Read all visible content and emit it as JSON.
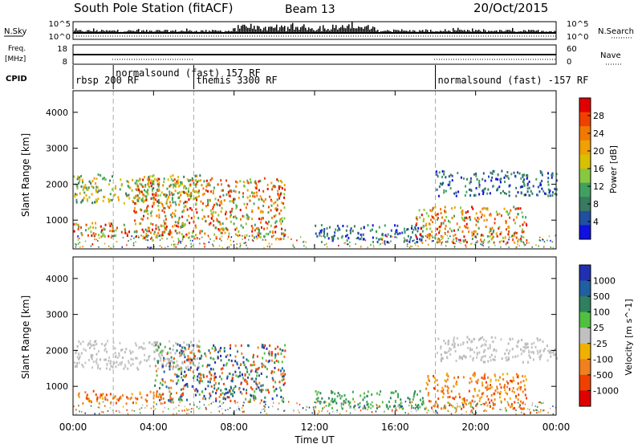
{
  "header": {
    "station": "South Pole Station (fitACF)",
    "beam": "Beam 13",
    "date": "20/Oct/2015"
  },
  "panel_labels": {
    "nsky": "N.Sky",
    "nsearch": "N.Search",
    "freq_line1": "Freq.",
    "freq_line2": "[MHz]",
    "nave": "Nave",
    "cpid": "CPID"
  },
  "small_axis_ticks": {
    "nsky_left": [
      "10^5",
      "10^0"
    ],
    "nsky_right": [
      "10^5",
      "10^0"
    ],
    "freq_left": [
      "18",
      "8"
    ],
    "nave_right": [
      "60",
      "0"
    ]
  },
  "cpid_segments": [
    {
      "label": "rbsp 200 RF",
      "start": 0.0,
      "end": 2.0
    },
    {
      "label": "normalsound (fast) 157 RF",
      "start": 2.0,
      "end": 6.0
    },
    {
      "label": "themis 3300 RF",
      "start": 6.0,
      "end": 18.0
    },
    {
      "label": "normalsound (fast) -157 RF",
      "start": 18.0,
      "end": 24.0
    }
  ],
  "power_colorbar": {
    "label": "Power [dB]",
    "ticks": [
      "28",
      "24",
      "20",
      "16",
      "12",
      "8",
      "4"
    ],
    "colors": [
      "#e00000",
      "#f04000",
      "#f07a00",
      "#f0a000",
      "#d8c000",
      "#88c840",
      "#40a060",
      "#3a7a60",
      "#2050a0",
      "#1010e0"
    ]
  },
  "velocity_colorbar": {
    "label": "Velocity [m s^-1]",
    "ticks": [
      "1000",
      "500",
      "100",
      "25",
      "-25",
      "-100",
      "-500",
      "-1000"
    ],
    "colors": [
      "#2030b0",
      "#2060a0",
      "#308060",
      "#50c040",
      "#c0c0c0",
      "#f0b000",
      "#f08020",
      "#f04000",
      "#e00000"
    ]
  },
  "chart_data": [
    {
      "type": "heatmap",
      "name": "power",
      "ylabel": "Slant Range [km]",
      "xlim": [
        0,
        24
      ],
      "ylim": [
        200,
        4600
      ],
      "yticks": [
        "4000",
        "3000",
        "2000",
        "1000"
      ],
      "bands": [
        {
          "t0": 0.0,
          "t1": 6.3,
          "r0": 1500,
          "r1": 2300,
          "level": "mid"
        },
        {
          "t0": 0.0,
          "t1": 5.5,
          "r0": 550,
          "r1": 950,
          "level": "high"
        },
        {
          "t0": 3.0,
          "t1": 10.5,
          "r0": 500,
          "r1": 2200,
          "level": "high"
        },
        {
          "t0": 12.0,
          "t1": 17.5,
          "r0": 400,
          "r1": 900,
          "level": "low"
        },
        {
          "t0": 17.0,
          "t1": 22.5,
          "r0": 400,
          "r1": 1400,
          "level": "high"
        },
        {
          "t0": 18.0,
          "t1": 24.0,
          "r0": 1700,
          "r1": 2400,
          "level": "low"
        }
      ]
    },
    {
      "type": "heatmap",
      "name": "velocity",
      "ylabel": "Slant Range [km]",
      "xlim": [
        0,
        24
      ],
      "ylim": [
        200,
        4600
      ],
      "yticks": [
        "4000",
        "3000",
        "2000",
        "1000"
      ],
      "bands": [
        {
          "t0": 0.0,
          "t1": 6.3,
          "r0": 1500,
          "r1": 2300,
          "level": "grey"
        },
        {
          "t0": 0.0,
          "t1": 5.0,
          "r0": 550,
          "r1": 900,
          "level": "orange"
        },
        {
          "t0": 4.0,
          "t1": 10.5,
          "r0": 600,
          "r1": 2200,
          "level": "mixed"
        },
        {
          "t0": 12.0,
          "t1": 17.5,
          "r0": 400,
          "r1": 900,
          "level": "green"
        },
        {
          "t0": 17.5,
          "t1": 22.5,
          "r0": 400,
          "r1": 1400,
          "level": "orange"
        },
        {
          "t0": 18.0,
          "t1": 24.0,
          "r0": 1700,
          "r1": 2400,
          "level": "grey"
        }
      ]
    }
  ],
  "x_axis": {
    "ticks": [
      "00:00",
      "04:00",
      "08:00",
      "12:00",
      "16:00",
      "20:00",
      "00:00"
    ],
    "label": "Time UT"
  }
}
